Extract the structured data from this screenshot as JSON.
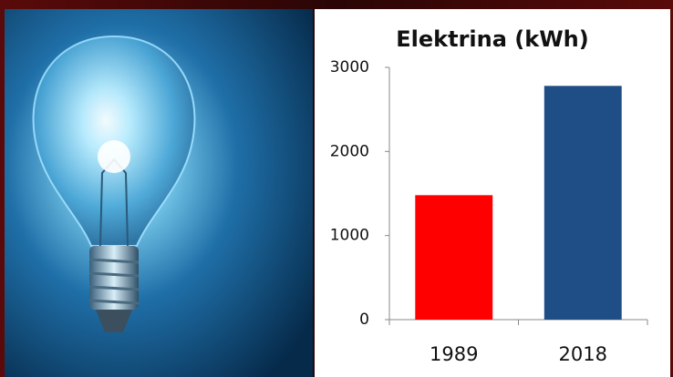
{
  "chart_data": {
    "type": "bar",
    "title": "Elektrina (kWh)",
    "categories": [
      "1989",
      "2018"
    ],
    "values": [
      1480,
      2780
    ],
    "colors": [
      "#ff0000",
      "#1f4e86"
    ],
    "ylim": [
      0,
      3000
    ],
    "yticks": [
      0,
      1000,
      2000,
      3000
    ],
    "grid": false
  }
}
